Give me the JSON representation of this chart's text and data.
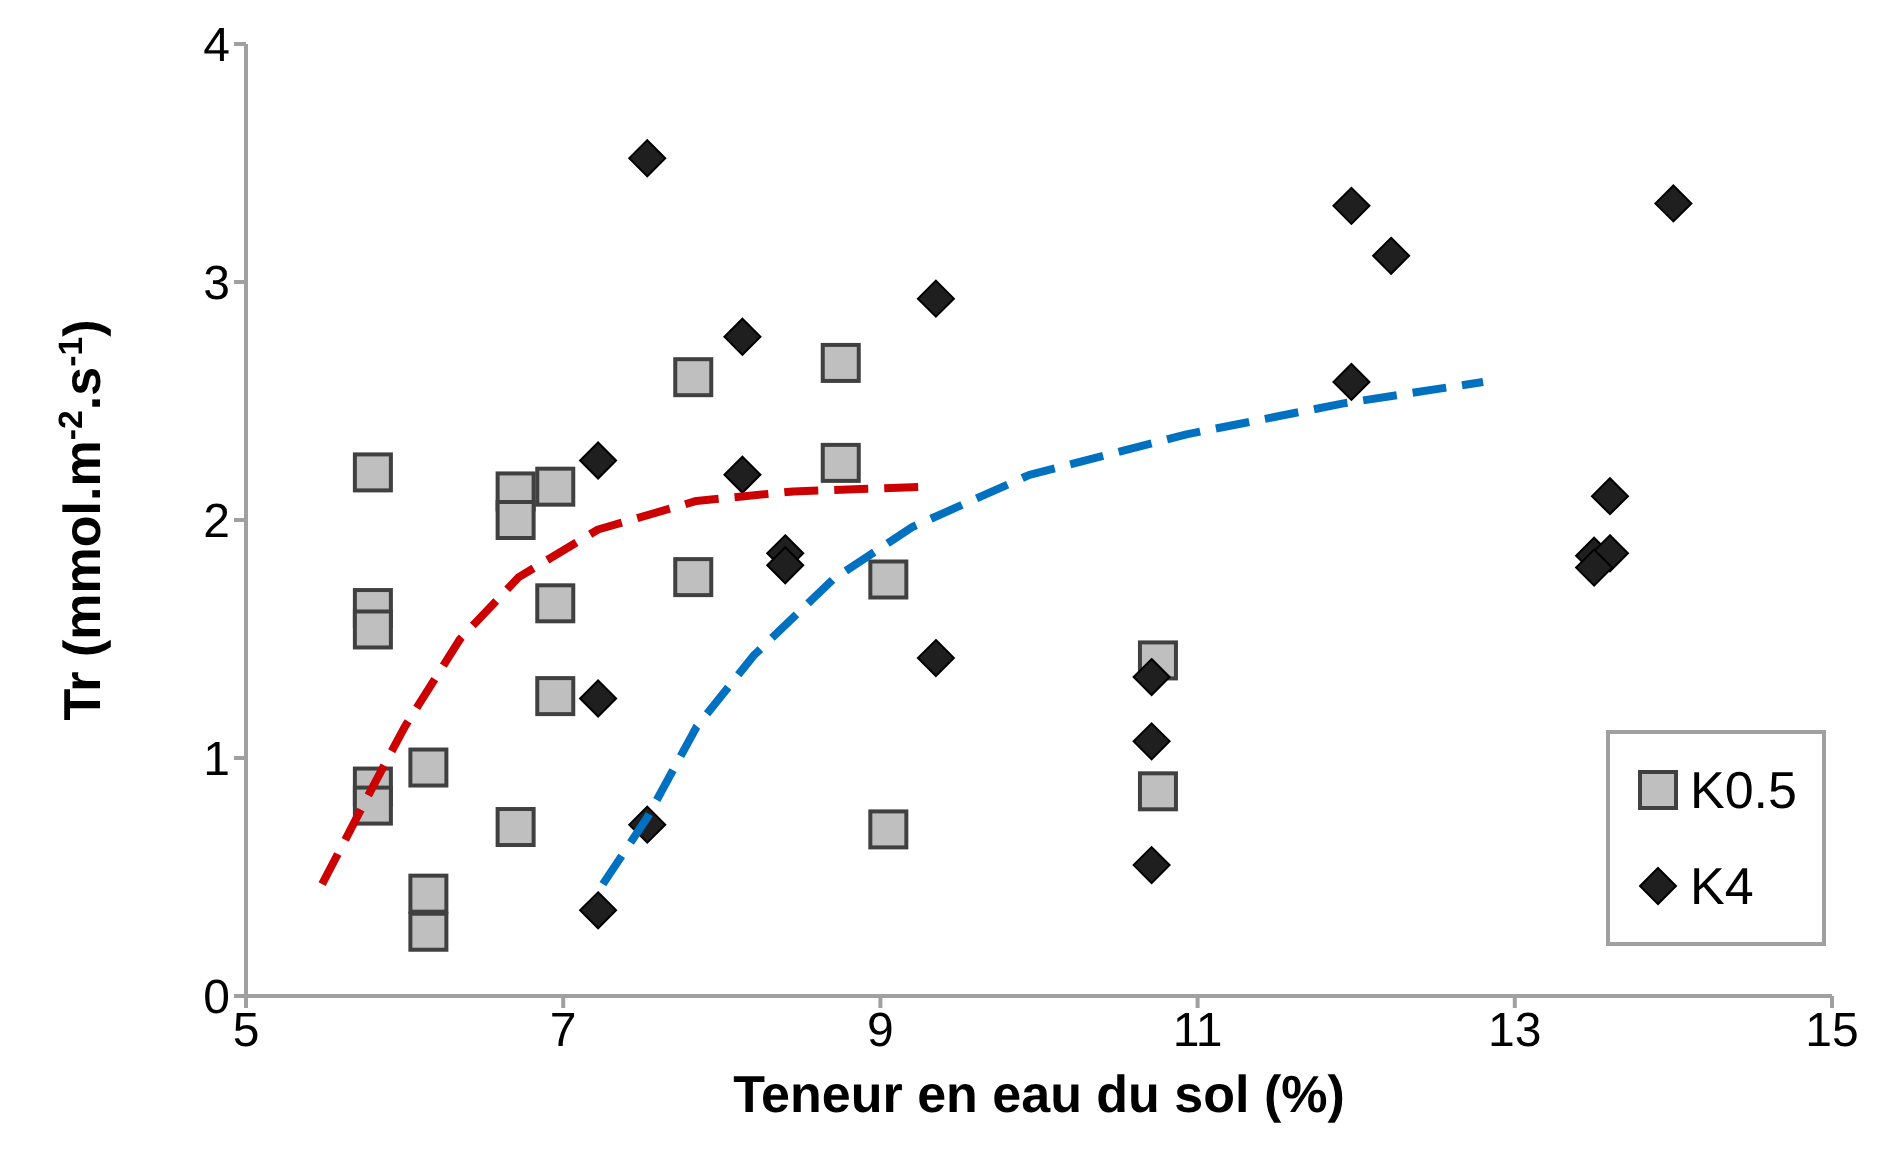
{
  "chart_data": {
    "type": "scatter",
    "xlabel": "Teneur en eau du sol (%)",
    "ylabel": "Tr (mmol.m$^{-2}$.s$^{-1}$)",
    "xlim": [
      5,
      15
    ],
    "xticks": [
      5,
      7,
      9,
      11,
      13,
      15
    ],
    "ylim": [
      0,
      4
    ],
    "yticks": [
      0,
      1,
      2,
      3,
      4
    ],
    "grid": false,
    "legend": "bottom right",
    "series": [
      {
        "name": "K0.5",
        "type": "scatter",
        "marker": "square",
        "color": "#bfbfbf",
        "x": [
          5.8,
          5.8,
          5.8,
          5.8,
          5.8,
          6.15,
          6.15,
          6.15,
          6.7,
          6.7,
          6.7,
          6.95,
          6.95,
          6.95,
          7.82,
          7.82,
          8.75,
          8.75,
          9.05,
          9.05,
          10.75,
          10.75
        ],
        "values": [
          2.2,
          1.63,
          1.54,
          0.88,
          0.8,
          0.96,
          0.43,
          0.27,
          2.12,
          2.0,
          0.71,
          2.14,
          1.65,
          1.26,
          2.6,
          1.76,
          2.66,
          2.24,
          1.75,
          0.7,
          1.41,
          0.86
        ]
      },
      {
        "name": "K4",
        "type": "scatter",
        "marker": "diamond",
        "color": "#1f1f1f",
        "x": [
          7.53,
          7.22,
          7.22,
          7.53,
          7.22,
          8.13,
          8.13,
          8.4,
          8.4,
          9.35,
          9.35,
          10.71,
          10.71,
          10.71,
          11.97,
          12.22,
          11.97,
          13.6,
          13.5,
          13.6,
          13.5,
          14.0
        ],
        "values": [
          3.52,
          2.25,
          1.25,
          0.72,
          0.36,
          2.77,
          2.19,
          1.86,
          1.81,
          2.93,
          1.42,
          1.34,
          1.07,
          0.55,
          3.32,
          3.11,
          2.58,
          2.1,
          1.85,
          1.86,
          1.8,
          3.33
        ]
      },
      {
        "type": "line",
        "marker": "none",
        "line_style": "dashed",
        "color": "#cc0000",
        "x": [
          5.48,
          5.8,
          6.0,
          6.35,
          6.72,
          7.22,
          7.84,
          8.45,
          9.28
        ],
        "values": [
          0.47,
          0.88,
          1.13,
          1.5,
          1.76,
          1.96,
          2.08,
          2.12,
          2.14
        ]
      },
      {
        "type": "line",
        "marker": "none",
        "line_style": "dashed",
        "color": "#0070c0",
        "x": [
          7.25,
          7.53,
          7.84,
          8.2,
          8.7,
          9.2,
          9.94,
          10.93,
          11.92,
          12.8
        ],
        "values": [
          0.47,
          0.75,
          1.13,
          1.43,
          1.75,
          1.97,
          2.19,
          2.36,
          2.49,
          2.58
        ]
      }
    ]
  }
}
